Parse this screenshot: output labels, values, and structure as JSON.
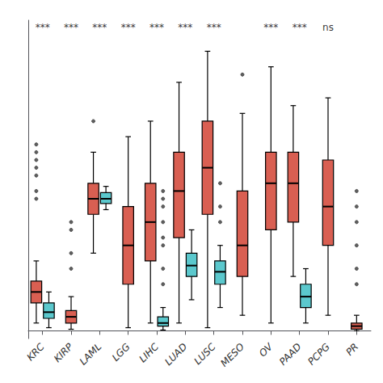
{
  "chart_data": {
    "type": "boxplot",
    "categories": [
      "KRC",
      "KIRP",
      "LAML",
      "LGG",
      "LIHC",
      "LUAD",
      "LUSC",
      "MESO",
      "OV",
      "PAAD",
      "PCPG",
      "PR"
    ],
    "series": [
      {
        "color": "#D95F52",
        "values": [
          [
            0.5,
            1.8,
            2.5,
            3.2,
            4.5
          ],
          [
            0.1,
            0.5,
            0.9,
            1.3,
            2.2
          ],
          [
            5.0,
            7.5,
            8.5,
            9.5,
            11.5
          ],
          [
            0.2,
            3.0,
            5.5,
            8.0,
            12.5
          ],
          [
            0.5,
            4.5,
            7.0,
            9.5,
            13.5
          ],
          [
            0.5,
            6.0,
            9.0,
            11.5,
            16.0
          ],
          [
            0.2,
            7.5,
            10.5,
            13.5,
            18.0
          ],
          [
            1.0,
            3.5,
            5.5,
            9.0,
            14.0
          ],
          [
            0.5,
            6.5,
            9.5,
            11.5,
            17.0
          ],
          [
            3.5,
            7.0,
            9.5,
            11.5,
            14.5
          ],
          [
            1.0,
            5.5,
            8.0,
            11.0,
            15.0
          ],
          [
            0.0,
            0.1,
            0.3,
            0.5,
            1.0
          ]
        ],
        "outliers": [
          [
            8.5,
            9.0,
            10.0,
            10.5,
            11.0,
            11.5,
            12.0
          ],
          [
            4.0,
            5.0,
            6.5,
            7.0
          ],
          [
            13.5
          ],
          [],
          [],
          [],
          [],
          [
            16.5
          ],
          [],
          [],
          [],
          [
            3.0,
            4.0,
            5.5,
            7.0,
            8.0,
            9.0
          ]
        ]
      },
      {
        "color": "#5BC8CD",
        "values": [
          [
            0.2,
            0.8,
            1.2,
            1.8,
            2.5
          ],
          null,
          [
            7.8,
            8.2,
            8.5,
            8.9,
            9.3
          ],
          null,
          [
            0.05,
            0.3,
            0.5,
            0.9,
            1.5
          ],
          [
            2.0,
            3.5,
            4.2,
            5.0,
            6.5
          ],
          [
            1.5,
            3.0,
            3.8,
            4.5,
            5.5
          ],
          null,
          null,
          [
            0.5,
            1.5,
            2.2,
            3.0,
            4.0
          ],
          null,
          null
        ],
        "outliers": [
          [],
          null,
          [],
          null,
          [
            3.0,
            4.0,
            5.5,
            6.0,
            7.0,
            8.0,
            8.5,
            9.0
          ],
          [],
          [
            7.0,
            8.0,
            9.5
          ],
          null,
          null,
          [],
          null,
          null
        ]
      }
    ],
    "annotations": [
      {
        "category": "KRC",
        "y": 19.2,
        "text": "***"
      },
      {
        "category": "KIRP",
        "y": 19.2,
        "text": "***"
      },
      {
        "category": "LAML",
        "y": 19.2,
        "text": "***"
      },
      {
        "category": "LGG",
        "y": 19.2,
        "text": "***"
      },
      {
        "category": "LIHC",
        "y": 19.2,
        "text": "***"
      },
      {
        "category": "LUAD",
        "y": 19.2,
        "text": "***"
      },
      {
        "category": "LUSC",
        "y": 19.2,
        "text": "***"
      },
      {
        "category": "OV",
        "y": 19.2,
        "text": "***"
      },
      {
        "category": "PAAD",
        "y": 19.2,
        "text": "***"
      },
      {
        "category": "PCPG",
        "y": 19.2,
        "text": "ns"
      }
    ],
    "ylim": [
      -0.5,
      20.0
    ],
    "tick_labels": "x",
    "grid": false
  }
}
